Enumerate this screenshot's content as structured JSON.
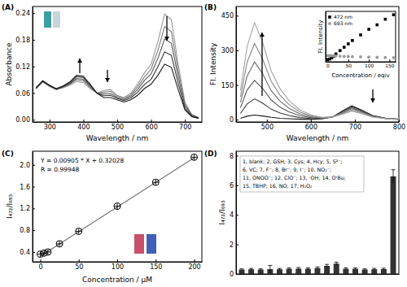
{
  "chart_data": [
    {
      "type": "line",
      "title": "(A)",
      "x_label": "Wavelength / nm",
      "y_label": "Absorbance",
      "x": [
        260,
        280,
        300,
        320,
        340,
        360,
        380,
        400,
        420,
        440,
        460,
        480,
        500,
        520,
        540,
        560,
        580,
        600,
        620,
        640,
        660,
        680,
        700,
        720,
        740
      ],
      "series": [
        {
          "color": "#9a9a9a",
          "values": [
            0.07,
            0.085,
            0.075,
            0.068,
            0.072,
            0.078,
            0.086,
            0.084,
            0.07,
            0.06,
            0.066,
            0.068,
            0.055,
            0.05,
            0.06,
            0.08,
            0.105,
            0.125,
            0.175,
            0.238,
            0.225,
            0.125,
            0.04,
            0.012,
            0.005
          ]
        },
        {
          "color": "#7a7a7a",
          "values": [
            0.07,
            0.086,
            0.076,
            0.068,
            0.073,
            0.08,
            0.09,
            0.088,
            0.073,
            0.06,
            0.062,
            0.064,
            0.053,
            0.048,
            0.056,
            0.074,
            0.096,
            0.114,
            0.156,
            0.21,
            0.198,
            0.111,
            0.035,
            0.011,
            0.005
          ]
        },
        {
          "color": "#5a5a5a",
          "values": [
            0.071,
            0.086,
            0.076,
            0.069,
            0.074,
            0.081,
            0.093,
            0.091,
            0.075,
            0.06,
            0.058,
            0.059,
            0.05,
            0.045,
            0.053,
            0.068,
            0.088,
            0.103,
            0.138,
            0.182,
            0.172,
            0.097,
            0.031,
            0.01,
            0.004
          ]
        },
        {
          "color": "#3a3a3a",
          "values": [
            0.071,
            0.087,
            0.077,
            0.069,
            0.075,
            0.083,
            0.097,
            0.095,
            0.078,
            0.06,
            0.054,
            0.055,
            0.048,
            0.043,
            0.049,
            0.062,
            0.079,
            0.091,
            0.119,
            0.153,
            0.145,
            0.082,
            0.026,
            0.008,
            0.004
          ]
        },
        {
          "color": "#1a1a1a",
          "values": [
            0.072,
            0.088,
            0.078,
            0.07,
            0.076,
            0.085,
            0.1,
            0.098,
            0.08,
            0.06,
            0.05,
            0.05,
            0.045,
            0.04,
            0.045,
            0.055,
            0.07,
            0.08,
            0.1,
            0.125,
            0.118,
            0.068,
            0.022,
            0.007,
            0.003
          ]
        }
      ],
      "xlim": [
        250,
        750
      ],
      "ylim": [
        -0.005,
        0.255
      ],
      "xticks": [
        300,
        400,
        500,
        600,
        700
      ],
      "yticks": [
        {
          "value": 0,
          "label": "0.00"
        },
        0.06,
        0.12,
        0.18,
        0.24
      ]
    },
    {
      "type": "line",
      "title": "(B)",
      "x_label": "Wavelength / nm",
      "y_label": "Fl. Intensity",
      "x": [
        440,
        455,
        472,
        490,
        510,
        530,
        550,
        575,
        600,
        625,
        650,
        670,
        693,
        715,
        740,
        770,
        800
      ],
      "series": [
        {
          "color": "#1a1a1a",
          "values": [
            6,
            15,
            20,
            16,
            10,
            6,
            4,
            2,
            1,
            3,
            12,
            36,
            60,
            42,
            18,
            6,
            2
          ]
        },
        {
          "color": "#3a3a3a",
          "values": [
            27,
            68,
            90,
            72,
            45,
            29,
            18,
            9,
            5,
            5,
            12,
            34,
            56,
            39,
            17,
            6,
            2
          ]
        },
        {
          "color": "#555555",
          "values": [
            51,
            128,
            170,
            136,
            85,
            54,
            34,
            17,
            9,
            6,
            12,
            31,
            52,
            36,
            16,
            5,
            2
          ]
        },
        {
          "color": "#707070",
          "values": [
            75,
            188,
            250,
            200,
            125,
            80,
            50,
            25,
            13,
            7,
            12,
            28,
            47,
            33,
            14,
            5,
            1
          ]
        },
        {
          "color": "#8a8a8a",
          "values": [
            99,
            248,
            330,
            264,
            165,
            106,
            66,
            33,
            17,
            9,
            12,
            25,
            42,
            29,
            13,
            4,
            1
          ]
        },
        {
          "color": "#a5a5a5",
          "values": [
            126,
            315,
            420,
            336,
            210,
            134,
            84,
            42,
            21,
            10,
            12,
            22,
            37,
            26,
            11,
            4,
            1
          ]
        }
      ],
      "xlim": [
        430,
        800
      ],
      "ylim": [
        -10,
        490
      ],
      "xticks": [
        500,
        600,
        700,
        800
      ],
      "yticks": [
        0,
        150,
        300,
        450
      ]
    },
    {
      "type": "scatter",
      "x_label": "Concentration / eqiv",
      "y_label": "Fl. Intensity",
      "x": [
        0,
        5,
        10,
        15,
        20,
        30,
        40,
        50,
        60,
        80,
        100,
        120,
        140,
        160
      ],
      "series": [
        {
          "name": "472 nm",
          "color": "#000000",
          "marker": "square",
          "values": [
            20,
            25,
            35,
            50,
            70,
            100,
            130,
            160,
            190,
            240,
            290,
            330,
            380,
            420
          ]
        },
        {
          "name": "693 nm",
          "color": "#999999",
          "marker": "circle",
          "values": [
            55,
            55,
            54,
            53,
            52,
            50,
            48,
            47,
            46,
            44,
            42,
            40,
            38,
            37
          ]
        }
      ],
      "xlim": [
        -5,
        165
      ],
      "ylim": [
        0,
        450
      ],
      "xticks": [
        0,
        50,
        100,
        150
      ],
      "tick_labels": "x",
      "legend": "top-left"
    },
    {
      "type": "scatter",
      "title": "(C)",
      "x_label": "Concentration / μM",
      "y_label": "I₄₇₂/I₆₉₃",
      "x": [
        0,
        5,
        10,
        25,
        50,
        100,
        150,
        200
      ],
      "values": [
        0.36,
        0.38,
        0.4,
        0.55,
        0.78,
        1.24,
        1.68,
        2.14
      ],
      "errors": [
        0.05,
        0.05,
        0.05,
        0.05,
        0.05,
        0.05,
        0.05,
        0.05
      ],
      "marker": "circle",
      "color": "#000000",
      "fit": {
        "slope": 0.00905,
        "intercept": 0.32028
      },
      "annotations": [
        "Y = 0.00905 * X + 0.32028",
        "R = 0.99948"
      ],
      "xlim": [
        -10,
        210
      ],
      "ylim": [
        0.22,
        2.25
      ],
      "xticks": [
        0,
        50,
        100,
        150,
        200
      ],
      "yticks": [
        0.4,
        0.8,
        1.2,
        1.6,
        {
          "value": 2,
          "label": "2.0"
        }
      ]
    },
    {
      "type": "bar",
      "title": "(D)",
      "y_label": "I₄₇₂/I₆₉₃",
      "categories": [
        null,
        null,
        null,
        null,
        null,
        null,
        null,
        null,
        null,
        null,
        null,
        null,
        null,
        null,
        null,
        null,
        null
      ],
      "values": [
        0.3,
        0.32,
        0.3,
        0.33,
        0.32,
        0.35,
        0.36,
        0.35,
        0.4,
        0.55,
        0.7,
        0.35,
        0.35,
        0.3,
        0.32,
        0.33,
        6.6
      ],
      "errors": [
        0.05,
        0.06,
        0.05,
        0.25,
        0.06,
        0.06,
        0.08,
        0.06,
        0.08,
        0.1,
        0.1,
        0.06,
        0.06,
        0.05,
        0.06,
        0.06,
        0.45
      ],
      "color": "#333333",
      "annotations": [
        "1, blank; 2, GSH; 3, Cys; 4, Hcy; 5, S²⁻;",
        "6, VC; 7, F⁻; 8, Br⁻; 9, I⁻; 10, NO₂⁻;",
        "11, ONOO⁻; 12, ClO⁻; 13, ·OH; 14, OᵗBu;",
        "15, TBHP; 16, NO; 17, H₂O₂"
      ],
      "ylim": [
        0,
        8.3
      ],
      "yticks": [
        0,
        2,
        4,
        6,
        8
      ],
      "tick_labels": "y"
    }
  ]
}
